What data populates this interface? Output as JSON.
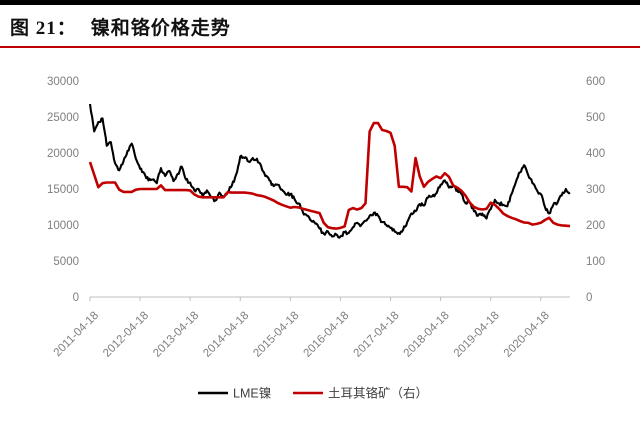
{
  "header": {
    "figure_label": "图 21：",
    "title": "镍和铬价格走势"
  },
  "colors": {
    "accent_red": "#c00000",
    "line_black": "#000000",
    "axis_gray": "#bfbfbf",
    "tick_label_gray": "#7f7f7f",
    "title_black": "#111111"
  },
  "legend": {
    "items": [
      {
        "label": "LME镍",
        "color": "#000000"
      },
      {
        "label": "土耳其铬矿（右）",
        "color": "#c00000"
      }
    ]
  },
  "chart_data": {
    "type": "line",
    "title": "镍和铬价格走势",
    "grid": false,
    "legend_position": "bottom-center",
    "left_axis": {
      "min": 0,
      "max": 30000,
      "step": 5000,
      "tick_labels": [
        "0",
        "5000",
        "10000",
        "15000",
        "20000",
        "25000",
        "30000"
      ]
    },
    "right_axis": {
      "min": 0,
      "max": 600,
      "step": 100,
      "tick_labels": [
        "0",
        "100",
        "200",
        "300",
        "400",
        "500",
        "600"
      ]
    },
    "x_tick_labels": [
      "2011-04-18",
      "2012-04-18",
      "2013-04-18",
      "2014-04-18",
      "2015-04-18",
      "2016-04-18",
      "2017-04-18",
      "2018-04-18",
      "2019-04-18",
      "2020-04-18"
    ],
    "x": [
      "2011-04",
      "2011-05",
      "2011-06",
      "2011-07",
      "2011-08",
      "2011-09",
      "2011-10",
      "2011-11",
      "2011-12",
      "2012-01",
      "2012-02",
      "2012-03",
      "2012-04",
      "2012-05",
      "2012-06",
      "2012-07",
      "2012-08",
      "2012-09",
      "2012-10",
      "2012-11",
      "2012-12",
      "2013-01",
      "2013-02",
      "2013-03",
      "2013-04",
      "2013-05",
      "2013-06",
      "2013-07",
      "2013-08",
      "2013-09",
      "2013-10",
      "2013-11",
      "2013-12",
      "2014-01",
      "2014-02",
      "2014-03",
      "2014-04",
      "2014-05",
      "2014-06",
      "2014-07",
      "2014-08",
      "2014-09",
      "2014-10",
      "2014-11",
      "2014-12",
      "2015-01",
      "2015-02",
      "2015-03",
      "2015-04",
      "2015-05",
      "2015-06",
      "2015-07",
      "2015-08",
      "2015-09",
      "2015-10",
      "2015-11",
      "2015-12",
      "2016-01",
      "2016-02",
      "2016-03",
      "2016-04",
      "2016-05",
      "2016-06",
      "2016-07",
      "2016-08",
      "2016-09",
      "2016-10",
      "2016-11",
      "2016-12",
      "2017-01",
      "2017-02",
      "2017-03",
      "2017-04",
      "2017-05",
      "2017-06",
      "2017-07",
      "2017-08",
      "2017-09",
      "2017-10",
      "2017-11",
      "2017-12",
      "2018-01",
      "2018-02",
      "2018-03",
      "2018-04",
      "2018-05",
      "2018-06",
      "2018-07",
      "2018-08",
      "2018-09",
      "2018-10",
      "2018-11",
      "2018-12",
      "2019-01",
      "2019-02",
      "2019-03",
      "2019-04",
      "2019-05",
      "2019-06",
      "2019-07",
      "2019-08",
      "2019-09",
      "2019-10",
      "2019-11",
      "2019-12",
      "2020-01",
      "2020-02",
      "2020-03",
      "2020-04",
      "2020-05",
      "2020-06",
      "2020-07",
      "2020-08",
      "2020-09",
      "2020-10",
      "2020-11"
    ],
    "series": [
      {
        "name": "LME镍",
        "axis": "left",
        "color": "#000000",
        "values": [
          26800,
          23000,
          24300,
          24800,
          21000,
          21500,
          18600,
          17600,
          18800,
          20300,
          21300,
          19200,
          17800,
          17200,
          16200,
          16300,
          15800,
          17900,
          16800,
          17500,
          16100,
          17100,
          18100,
          16300,
          15900,
          14800,
          15000,
          14000,
          14800,
          13900,
          13400,
          14500,
          13900,
          14600,
          15500,
          17000,
          19500,
          19300,
          18800,
          19300,
          19200,
          18200,
          16800,
          16200,
          15400,
          15600,
          14900,
          14200,
          14300,
          13600,
          13000,
          11800,
          11300,
          10600,
          10200,
          9500,
          8800,
          9100,
          8400,
          8700,
          8400,
          9000,
          8900,
          9700,
          10300,
          10000,
          10600,
          11300,
          11700,
          11300,
          10400,
          10000,
          9600,
          9100,
          8900,
          9300,
          10400,
          11600,
          11900,
          12900,
          12700,
          13800,
          14000,
          14400,
          15600,
          16200,
          15200,
          15600,
          14800,
          14300,
          13000,
          13100,
          11900,
          11300,
          11600,
          10900,
          12200,
          13500,
          13000,
          12800,
          12600,
          14300,
          15900,
          17300,
          18300,
          16900,
          15800,
          14900,
          14300,
          12500,
          11600,
          12800,
          13100,
          14100,
          15000,
          14500
        ]
      },
      {
        "name": "土耳其铬矿（右）",
        "axis": "right",
        "color": "#c00000",
        "values": [
          375,
          340,
          305,
          316,
          318,
          318,
          318,
          298,
          292,
          292,
          292,
          298,
          300,
          300,
          300,
          300,
          300,
          310,
          297,
          297,
          297,
          297,
          297,
          297,
          296,
          285,
          279,
          277,
          277,
          277,
          277,
          277,
          277,
          291,
          290,
          290,
          290,
          290,
          289,
          287,
          283,
          281,
          278,
          273,
          268,
          261,
          256,
          252,
          248,
          250,
          249,
          245,
          242,
          239,
          236,
          233,
          206,
          194,
          191,
          190,
          192,
          196,
          242,
          247,
          243,
          247,
          260,
          460,
          483,
          483,
          464,
          461,
          456,
          420,
          306,
          306,
          305,
          293,
          386,
          335,
          306,
          320,
          328,
          335,
          330,
          344,
          334,
          310,
          304,
          295,
          281,
          262,
          250,
          245,
          243,
          245,
          262,
          256,
          245,
          232,
          225,
          220,
          216,
          211,
          207,
          206,
          201,
          203,
          206,
          214,
          220,
          206,
          201,
          199,
          198,
          197
        ]
      }
    ]
  }
}
